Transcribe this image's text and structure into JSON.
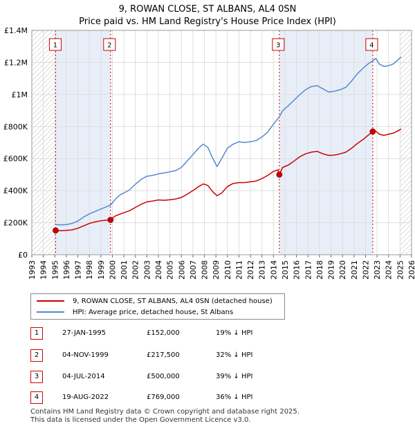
{
  "chart_data": {
    "type": "line",
    "title": "9, ROWAN CLOSE, ST ALBANS, AL4 0SN",
    "subtitle": "Price paid vs. HM Land Registry's House Price Index (HPI)",
    "x_range": [
      1993,
      2026
    ],
    "ylim": [
      0,
      1400000
    ],
    "x_ticks": [
      "1993",
      "1994",
      "1995",
      "1996",
      "1997",
      "1998",
      "1999",
      "2000",
      "2001",
      "2002",
      "2003",
      "2004",
      "2005",
      "2006",
      "2007",
      "2008",
      "2009",
      "2010",
      "2011",
      "2012",
      "2013",
      "2014",
      "2015",
      "2016",
      "2017",
      "2018",
      "2019",
      "2020",
      "2021",
      "2022",
      "2023",
      "2024",
      "2025",
      "2026"
    ],
    "y_ticks": [
      {
        "value": 0,
        "label": "£0"
      },
      {
        "value": 200000,
        "label": "£200K"
      },
      {
        "value": 400000,
        "label": "£400K"
      },
      {
        "value": 600000,
        "label": "£600K"
      },
      {
        "value": 800000,
        "label": "£800K"
      },
      {
        "value": 1000000,
        "label": "£1M"
      },
      {
        "value": 1200000,
        "label": "£1.2M"
      },
      {
        "value": 1400000,
        "label": "£1.4M"
      }
    ],
    "grid": true,
    "hatched_periods": [
      [
        1993,
        1995.07
      ],
      [
        2025.0,
        2026
      ]
    ],
    "shaded_periods": [
      [
        1995.07,
        1999.84
      ],
      [
        2014.51,
        2022.63
      ]
    ],
    "series": [
      {
        "name": "9, ROWAN CLOSE, ST ALBANS, AL4 0SN (detached house)",
        "color": "#cc0000",
        "points": [
          [
            1995.07,
            152000
          ],
          [
            1995.5,
            150000
          ],
          [
            1996,
            152000
          ],
          [
            1996.5,
            155000
          ],
          [
            1997,
            165000
          ],
          [
            1997.5,
            180000
          ],
          [
            1998,
            195000
          ],
          [
            1998.5,
            205000
          ],
          [
            1999,
            212000
          ],
          [
            1999.5,
            216000
          ],
          [
            1999.84,
            217500
          ],
          [
            2000.2,
            240000
          ],
          [
            2000.6,
            252000
          ],
          [
            2001,
            262000
          ],
          [
            2001.5,
            275000
          ],
          [
            2002,
            295000
          ],
          [
            2002.5,
            315000
          ],
          [
            2003,
            330000
          ],
          [
            2003.5,
            335000
          ],
          [
            2004,
            342000
          ],
          [
            2004.5,
            340000
          ],
          [
            2005,
            343000
          ],
          [
            2005.5,
            348000
          ],
          [
            2006,
            357000
          ],
          [
            2006.5,
            378000
          ],
          [
            2007,
            400000
          ],
          [
            2007.5,
            425000
          ],
          [
            2007.9,
            442000
          ],
          [
            2008.3,
            432000
          ],
          [
            2008.7,
            395000
          ],
          [
            2009.1,
            368000
          ],
          [
            2009.5,
            385000
          ],
          [
            2010,
            425000
          ],
          [
            2010.5,
            445000
          ],
          [
            2011,
            450000
          ],
          [
            2011.5,
            450000
          ],
          [
            2012,
            455000
          ],
          [
            2012.5,
            460000
          ],
          [
            2013,
            475000
          ],
          [
            2013.5,
            495000
          ],
          [
            2014,
            520000
          ],
          [
            2014.4,
            530000
          ],
          [
            2014.51,
            500000
          ],
          [
            2014.8,
            545000
          ],
          [
            2015.3,
            560000
          ],
          [
            2015.8,
            585000
          ],
          [
            2016.3,
            612000
          ],
          [
            2016.8,
            630000
          ],
          [
            2017.3,
            640000
          ],
          [
            2017.8,
            645000
          ],
          [
            2018.3,
            630000
          ],
          [
            2018.8,
            620000
          ],
          [
            2019.3,
            622000
          ],
          [
            2019.8,
            630000
          ],
          [
            2020.3,
            640000
          ],
          [
            2020.8,
            665000
          ],
          [
            2021.3,
            695000
          ],
          [
            2021.8,
            720000
          ],
          [
            2022.3,
            750000
          ],
          [
            2022.63,
            769000
          ],
          [
            2022.9,
            770000
          ],
          [
            2023.2,
            752000
          ],
          [
            2023.6,
            745000
          ],
          [
            2024,
            752000
          ],
          [
            2024.4,
            758000
          ],
          [
            2024.8,
            772000
          ],
          [
            2025.1,
            785000
          ]
        ]
      },
      {
        "name": "HPI: Average price, detached house, St Albans",
        "color": "#5588cc",
        "points": [
          [
            1995.07,
            188000
          ],
          [
            1995.5,
            186000
          ],
          [
            1996,
            188000
          ],
          [
            1996.5,
            195000
          ],
          [
            1997,
            210000
          ],
          [
            1997.5,
            235000
          ],
          [
            1998,
            255000
          ],
          [
            1998.5,
            270000
          ],
          [
            1999,
            285000
          ],
          [
            1999.5,
            300000
          ],
          [
            1999.84,
            310000
          ],
          [
            2000.3,
            350000
          ],
          [
            2000.7,
            375000
          ],
          [
            2001,
            385000
          ],
          [
            2001.5,
            405000
          ],
          [
            2002,
            440000
          ],
          [
            2002.5,
            470000
          ],
          [
            2003,
            490000
          ],
          [
            2003.5,
            495000
          ],
          [
            2004,
            505000
          ],
          [
            2004.5,
            510000
          ],
          [
            2005,
            518000
          ],
          [
            2005.5,
            525000
          ],
          [
            2006,
            545000
          ],
          [
            2006.5,
            585000
          ],
          [
            2007,
            625000
          ],
          [
            2007.5,
            665000
          ],
          [
            2007.9,
            690000
          ],
          [
            2008.3,
            670000
          ],
          [
            2008.7,
            605000
          ],
          [
            2009.1,
            550000
          ],
          [
            2009.5,
            600000
          ],
          [
            2010,
            665000
          ],
          [
            2010.5,
            690000
          ],
          [
            2011,
            705000
          ],
          [
            2011.5,
            700000
          ],
          [
            2012,
            705000
          ],
          [
            2012.5,
            712000
          ],
          [
            2013,
            735000
          ],
          [
            2013.5,
            765000
          ],
          [
            2014,
            815000
          ],
          [
            2014.51,
            860000
          ],
          [
            2014.8,
            900000
          ],
          [
            2015.3,
            930000
          ],
          [
            2015.8,
            965000
          ],
          [
            2016.3,
            1000000
          ],
          [
            2016.8,
            1030000
          ],
          [
            2017.3,
            1050000
          ],
          [
            2017.8,
            1055000
          ],
          [
            2018.3,
            1035000
          ],
          [
            2018.8,
            1015000
          ],
          [
            2019.3,
            1020000
          ],
          [
            2019.8,
            1030000
          ],
          [
            2020.3,
            1045000
          ],
          [
            2020.8,
            1085000
          ],
          [
            2021.3,
            1130000
          ],
          [
            2021.8,
            1165000
          ],
          [
            2022.3,
            1195000
          ],
          [
            2022.63,
            1210000
          ],
          [
            2022.9,
            1225000
          ],
          [
            2023.2,
            1190000
          ],
          [
            2023.6,
            1175000
          ],
          [
            2024,
            1180000
          ],
          [
            2024.4,
            1190000
          ],
          [
            2024.8,
            1215000
          ],
          [
            2025.1,
            1235000
          ]
        ]
      }
    ],
    "markers": [
      {
        "label": "1",
        "x": 1995.07,
        "price": 152000
      },
      {
        "label": "2",
        "x": 1999.84,
        "price": 217500
      },
      {
        "label": "3",
        "x": 2014.51,
        "price": 500000
      },
      {
        "label": "4",
        "x": 2022.63,
        "price": 769000
      }
    ]
  },
  "legend": {
    "property_label": "9, ROWAN CLOSE, ST ALBANS, AL4 0SN (detached house)",
    "hpi_label": "HPI: Average price, detached house, St Albans"
  },
  "transactions": [
    {
      "num": "1",
      "date": "27-JAN-1995",
      "price": "£152,000",
      "hpi": "19% ↓ HPI"
    },
    {
      "num": "2",
      "date": "04-NOV-1999",
      "price": "£217,500",
      "hpi": "32% ↓ HPI"
    },
    {
      "num": "3",
      "date": "04-JUL-2014",
      "price": "£500,000",
      "hpi": "39% ↓ HPI"
    },
    {
      "num": "4",
      "date": "19-AUG-2022",
      "price": "£769,000",
      "hpi": "36% ↓ HPI"
    }
  ],
  "footer": {
    "line1": "Contains HM Land Registry data © Crown copyright and database right 2025.",
    "line2": "This data is licensed under the Open Government Licence v3.0."
  },
  "colors": {
    "property": "#cc0000",
    "hpi": "#5588cc",
    "shade": "#e8eef8",
    "grid": "#dddddd"
  }
}
